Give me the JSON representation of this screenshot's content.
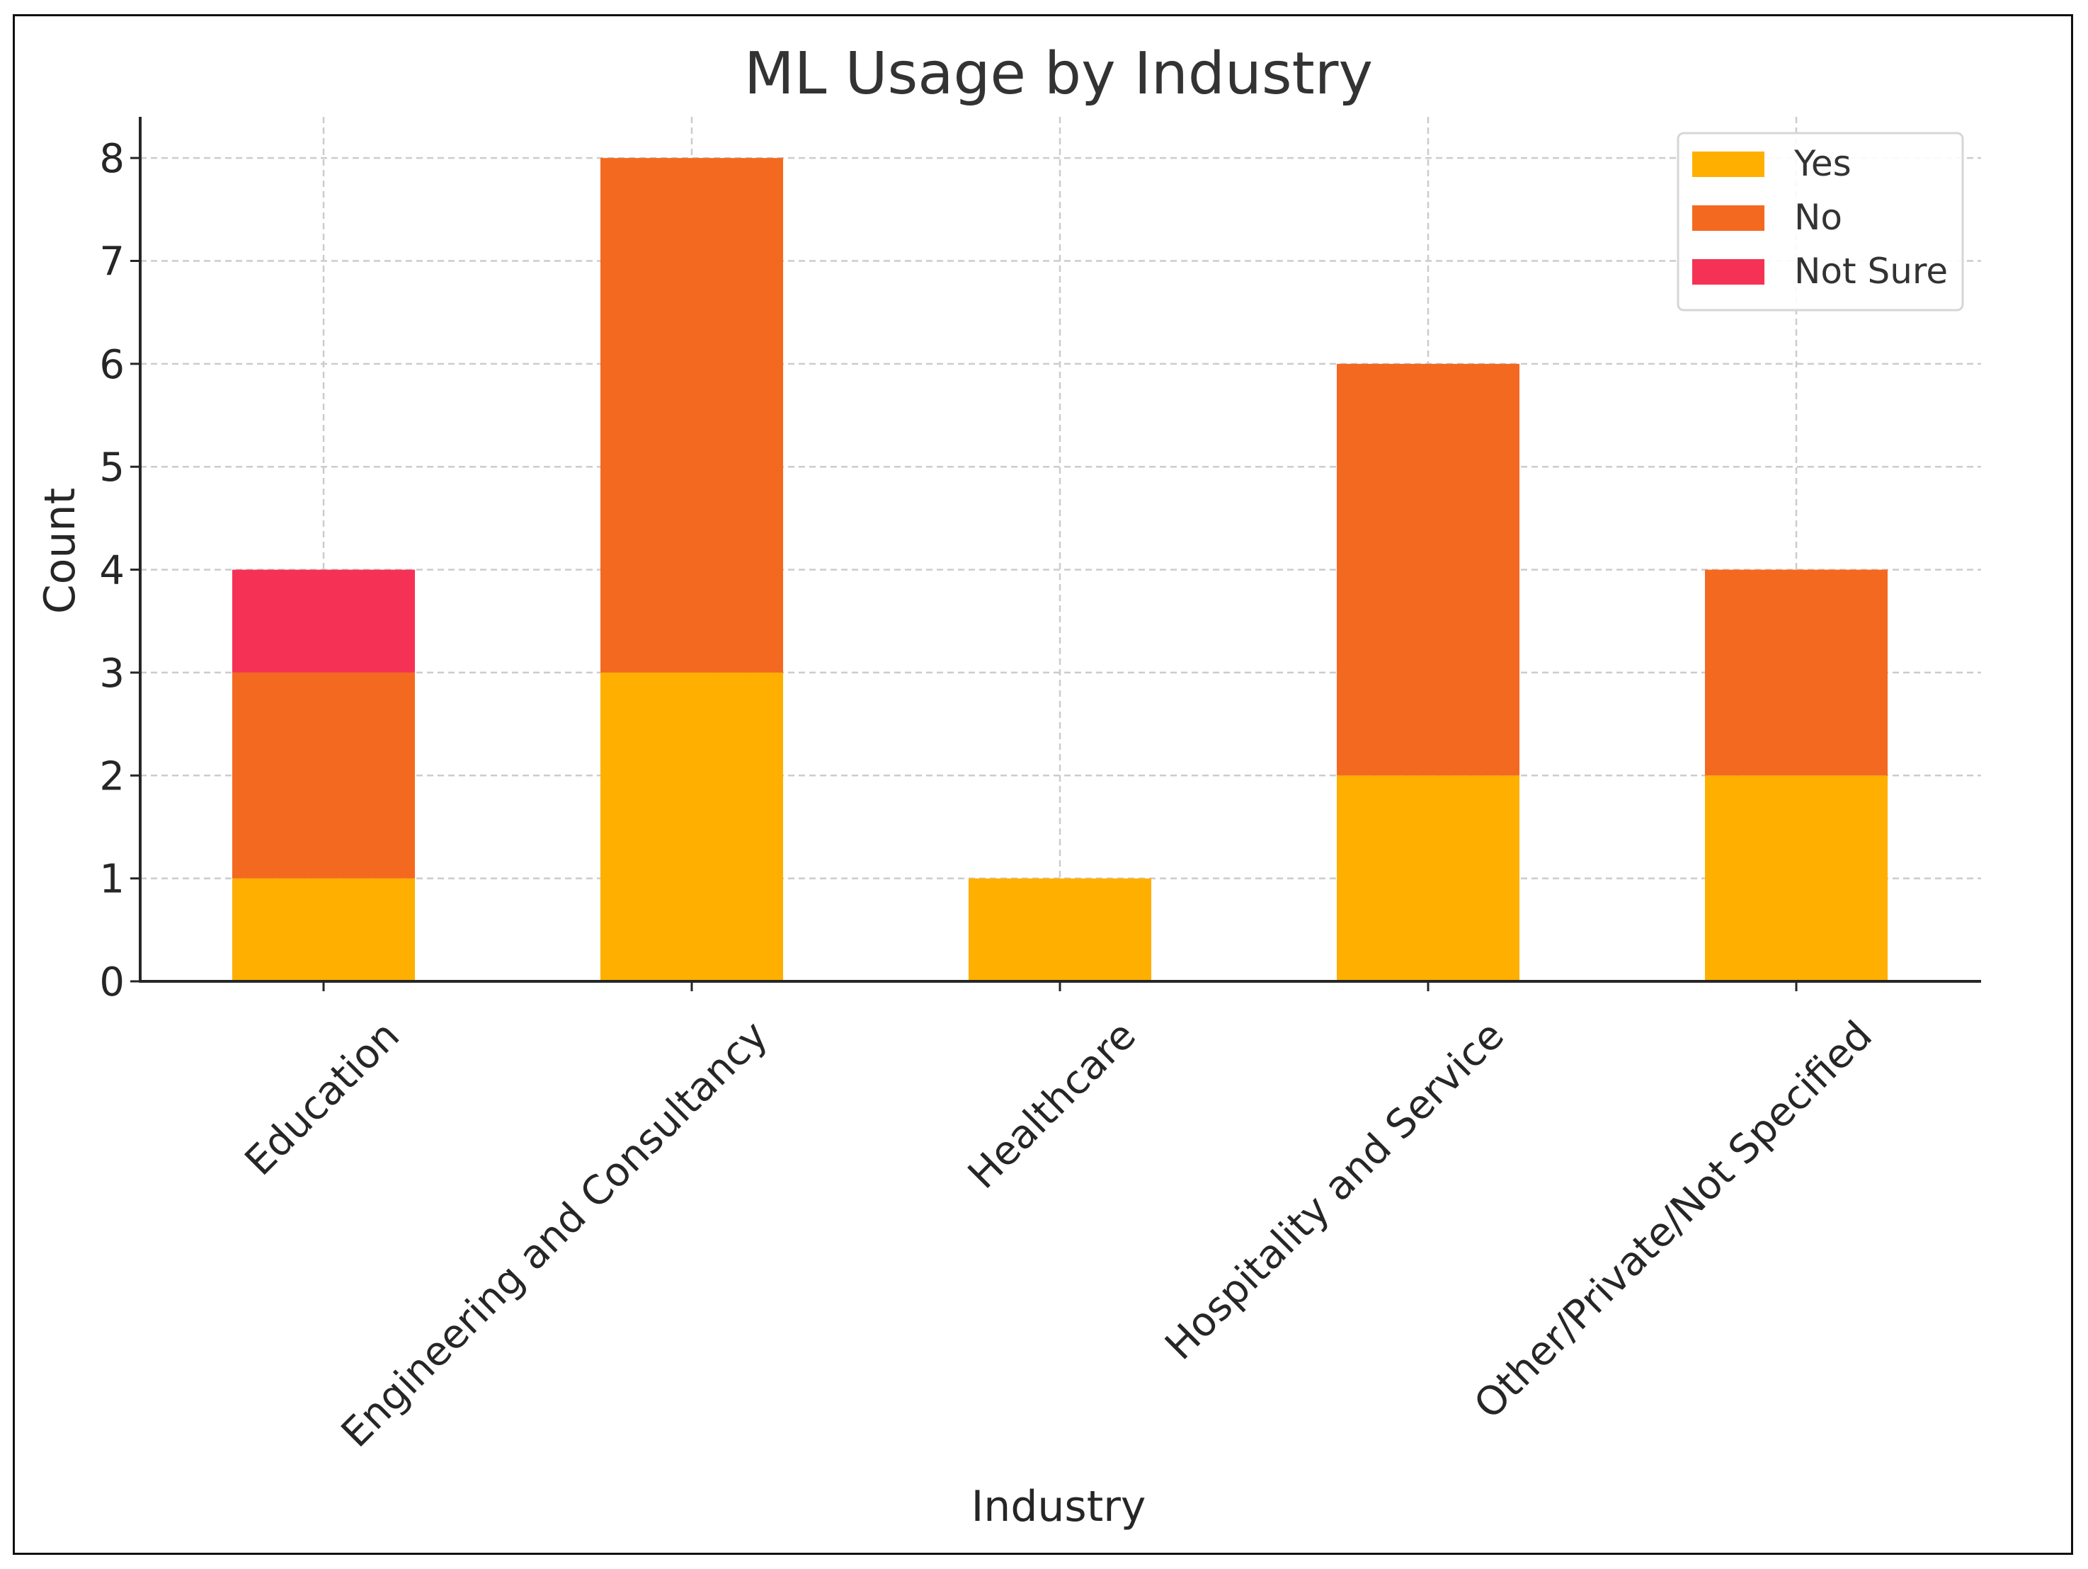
{
  "chart_data": {
    "type": "bar",
    "stacked": true,
    "title": "ML Usage by Industry",
    "xlabel": "Industry",
    "ylabel": "Count",
    "ylim": [
      0,
      8.4
    ],
    "yticks": [
      "0",
      "1",
      "2",
      "3",
      "4",
      "5",
      "6",
      "7",
      "8"
    ],
    "grid": true,
    "legend_position": "top-right",
    "categories": [
      "Education",
      "Engineering and Consultancy",
      "Healthcare",
      "Hospitality and Service",
      "Other/Private/Not Specified"
    ],
    "series": [
      {
        "name": "Yes",
        "color": "#FFAF00",
        "values": [
          1,
          3,
          1,
          2,
          2
        ]
      },
      {
        "name": "No",
        "color": "#F46920",
        "values": [
          2,
          5,
          0,
          4,
          2
        ]
      },
      {
        "name": "Not Sure",
        "color": "#F53255",
        "values": [
          1,
          0,
          0,
          0,
          0
        ]
      }
    ]
  }
}
